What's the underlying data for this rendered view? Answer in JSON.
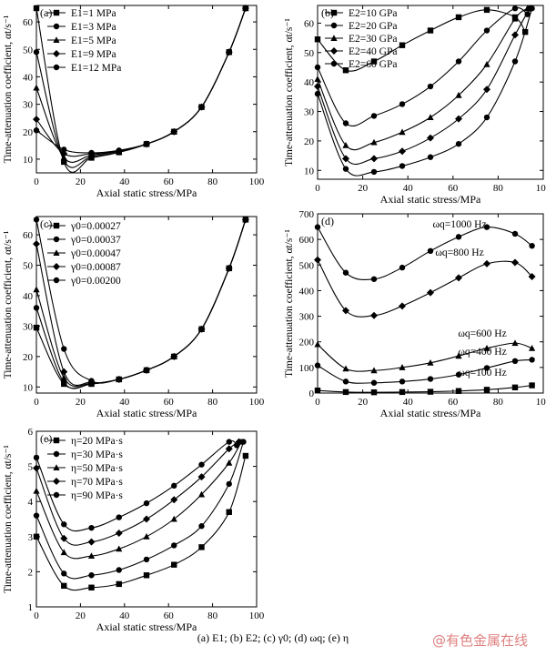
{
  "caption": "(a) E1; (b) E2; (c) γ0; (d) ωq; (e) η",
  "watermark": "@有色金属在线",
  "chart_data": [
    {
      "type": "line",
      "panel_label": "(a)",
      "xlabel": "Axial static stress/MPa",
      "ylabel": "Time-attenuation coefficient, αt/s⁻¹",
      "xlim": [
        0,
        100
      ],
      "ylim": [
        5,
        66
      ],
      "xticks": [
        0,
        20,
        40,
        60,
        80,
        100
      ],
      "yticks": [
        10,
        20,
        30,
        40,
        50,
        60
      ],
      "legend_position": "top-left",
      "series": [
        {
          "name": "E1=1 MPa",
          "marker": "square",
          "x": [
            0,
            12.5,
            25,
            37.5,
            50,
            62.5,
            75,
            87.5,
            95
          ],
          "y": [
            65,
            9,
            10.5,
            12.5,
            15.5,
            20,
            29,
            49,
            65
          ]
        },
        {
          "name": "E1=3 MPa",
          "marker": "circle",
          "x": [
            0,
            12.5,
            25,
            37.5,
            50,
            62.5,
            75,
            87.5,
            95
          ],
          "y": [
            49,
            9.5,
            11,
            12.5,
            15.5,
            20,
            29,
            49,
            65
          ]
        },
        {
          "name": "E1=5 MPa",
          "marker": "triangle",
          "x": [
            0,
            12.5,
            25,
            37.5,
            50,
            62.5,
            75,
            87.5,
            95
          ],
          "y": [
            36,
            10.5,
            11.5,
            12.8,
            15.5,
            20,
            29,
            49,
            65
          ]
        },
        {
          "name": "E1=9 MPa",
          "marker": "diamond",
          "x": [
            0,
            12.5,
            25,
            37.5,
            50,
            62.5,
            75,
            87.5,
            95
          ],
          "y": [
            24.5,
            12,
            12,
            13,
            15.5,
            20,
            29,
            49,
            65
          ]
        },
        {
          "name": "E1=12 MPa",
          "marker": "circle",
          "x": [
            0,
            12.5,
            25,
            37.5,
            50,
            62.5,
            75,
            87.5,
            95
          ],
          "y": [
            20.5,
            13.5,
            12.3,
            13.2,
            15.5,
            20,
            29,
            49,
            65
          ]
        }
      ]
    },
    {
      "type": "line",
      "panel_label": "(b)",
      "xlabel": "Axial static stress/MPa",
      "ylabel": "Time-attenuation coefficient, αt/s⁻¹",
      "xlim": [
        0,
        100
      ],
      "ylim": [
        7,
        66
      ],
      "xticks": [
        0,
        20,
        40,
        60,
        80,
        100
      ],
      "yticks": [
        10,
        20,
        30,
        40,
        50,
        60
      ],
      "legend_position": "top-left",
      "series": [
        {
          "name": "E2=10 GPa",
          "marker": "square",
          "x": [
            0,
            12.5,
            25,
            37.5,
            50,
            62.5,
            75,
            87.5,
            92
          ],
          "y": [
            54.5,
            44,
            47,
            52.5,
            57.5,
            62,
            64.5,
            62,
            57
          ]
        },
        {
          "name": "E2=20 GPa",
          "marker": "circle",
          "x": [
            0,
            12.5,
            25,
            37.5,
            50,
            62.5,
            75,
            87.5,
            93
          ],
          "y": [
            45,
            26,
            28.5,
            32.5,
            38.5,
            47,
            57.5,
            65,
            63
          ]
        },
        {
          "name": "E2=30 GPa",
          "marker": "triangle",
          "x": [
            0,
            12.5,
            25,
            37.5,
            50,
            62.5,
            75,
            87.5,
            93
          ],
          "y": [
            41,
            18.5,
            19.5,
            23,
            28,
            35.5,
            46,
            61.5,
            65
          ]
        },
        {
          "name": "E2=40 GPa",
          "marker": "diamond",
          "x": [
            0,
            12.5,
            25,
            37.5,
            50,
            62.5,
            75,
            87.5,
            94
          ],
          "y": [
            38.5,
            14,
            14,
            16.5,
            21,
            27.5,
            37.5,
            56,
            65
          ]
        },
        {
          "name": "E2=60 GPa",
          "marker": "circle",
          "x": [
            0,
            12.5,
            25,
            37.5,
            50,
            62.5,
            75,
            87.5,
            95
          ],
          "y": [
            36,
            10.5,
            9.5,
            11.5,
            14.5,
            19,
            28,
            47,
            65
          ]
        }
      ]
    },
    {
      "type": "line",
      "panel_label": "(c)",
      "xlabel": "Axial static stress/MPa",
      "ylabel": "Time-attenuation coefficient, αt/s⁻¹",
      "xlim": [
        0,
        100
      ],
      "ylim": [
        8,
        66
      ],
      "xticks": [
        0,
        20,
        40,
        60,
        80,
        100
      ],
      "yticks": [
        10,
        20,
        30,
        40,
        50,
        60
      ],
      "legend_position": "top-left",
      "series": [
        {
          "name": "γ0=0.00027",
          "marker": "square",
          "x": [
            0,
            12.5,
            25,
            37.5,
            50,
            62.5,
            75,
            87.5,
            95
          ],
          "y": [
            29.5,
            11,
            11,
            12.5,
            15.5,
            20,
            29,
            49,
            65
          ]
        },
        {
          "name": "γ0=0.00037",
          "marker": "circle",
          "x": [
            0,
            12.5,
            25,
            37.5,
            50,
            62.5,
            75,
            87.5,
            95
          ],
          "y": [
            36,
            11.5,
            11,
            12.5,
            15.5,
            20,
            29,
            49,
            65
          ]
        },
        {
          "name": "γ0=0.00047",
          "marker": "triangle",
          "x": [
            0,
            12.5,
            25,
            37.5,
            50,
            62.5,
            75,
            87.5,
            95
          ],
          "y": [
            42,
            13,
            11.2,
            12.5,
            15.5,
            20,
            29,
            49,
            65
          ]
        },
        {
          "name": "γ0=0.00087",
          "marker": "diamond",
          "x": [
            0,
            12.5,
            25,
            37.5,
            50,
            62.5,
            75,
            87.5,
            95
          ],
          "y": [
            57,
            15,
            11.5,
            12.5,
            15.5,
            20,
            29,
            49,
            65
          ]
        },
        {
          "name": "γ0=0.00200",
          "marker": "circle",
          "x": [
            0,
            12.5,
            25,
            37.5,
            50,
            62.5,
            75,
            87.5,
            95
          ],
          "y": [
            65,
            22.5,
            12,
            12.5,
            15.5,
            20,
            29,
            49,
            65
          ]
        }
      ]
    },
    {
      "type": "line",
      "panel_label": "(d)",
      "xlabel": "Axial static stress/MPa",
      "ylabel": "Time-attenuation coefficient, αt/s⁻¹",
      "xlim": [
        0,
        100
      ],
      "ylim": [
        0,
        700
      ],
      "xticks": [
        0,
        20,
        40,
        60,
        80,
        100
      ],
      "yticks": [
        0,
        100,
        200,
        300,
        400,
        500,
        600,
        700
      ],
      "legend_position": "inline labels",
      "series": [
        {
          "name": "ωq=1000 Hz",
          "marker": "circle",
          "x": [
            0,
            12.5,
            25,
            37.5,
            50,
            62.5,
            75,
            87.5,
            95
          ],
          "y": [
            648,
            470,
            445,
            490,
            555,
            610,
            648,
            622,
            575
          ]
        },
        {
          "name": "ωq=800 Hz",
          "marker": "diamond",
          "x": [
            0,
            12.5,
            25,
            37.5,
            50,
            62.5,
            75,
            87.5,
            95
          ],
          "y": [
            520,
            322,
            303,
            340,
            392,
            450,
            505,
            510,
            455
          ]
        },
        {
          "name": "ωq=600 Hz",
          "marker": "triangle",
          "x": [
            0,
            12.5,
            25,
            37.5,
            50,
            62.5,
            75,
            87.5,
            95
          ],
          "y": [
            190,
            95,
            88,
            100,
            118,
            145,
            175,
            195,
            175
          ]
        },
        {
          "name": "ωq=400 Hz",
          "marker": "circle",
          "x": [
            0,
            12.5,
            25,
            37.5,
            50,
            62.5,
            75,
            87.5,
            95
          ],
          "y": [
            108,
            45,
            40,
            45,
            55,
            72,
            98,
            125,
            130
          ]
        },
        {
          "name": "ωq=100 Hz",
          "marker": "square",
          "x": [
            0,
            12.5,
            25,
            37.5,
            50,
            62.5,
            75,
            87.5,
            95
          ],
          "y": [
            10,
            4,
            3,
            4,
            5,
            8,
            13,
            22,
            30
          ]
        }
      ]
    },
    {
      "type": "line",
      "panel_label": "(e)",
      "xlabel": "Axial static stress/MPa",
      "ylabel": "Time-attenuation coefficient, αt/s⁻¹",
      "xlim": [
        0,
        100
      ],
      "ylim": [
        1,
        6
      ],
      "xticks": [
        0,
        20,
        40,
        60,
        80,
        100
      ],
      "yticks": [
        1,
        2,
        3,
        4,
        5,
        6
      ],
      "legend_position": "top-left",
      "series": [
        {
          "name": "η=20 MPa·s",
          "marker": "square",
          "x": [
            0,
            12.5,
            25,
            37.5,
            50,
            62.5,
            75,
            87.5,
            95
          ],
          "y": [
            3.0,
            1.6,
            1.55,
            1.65,
            1.9,
            2.2,
            2.7,
            3.7,
            5.3
          ]
        },
        {
          "name": "η=30 MPa·s",
          "marker": "circle",
          "x": [
            0,
            12.5,
            25,
            37.5,
            50,
            62.5,
            75,
            87.5,
            94
          ],
          "y": [
            3.6,
            1.95,
            1.9,
            2.05,
            2.35,
            2.75,
            3.3,
            4.5,
            5.7
          ]
        },
        {
          "name": "η=50 MPa·s",
          "marker": "triangle",
          "x": [
            0,
            12.5,
            25,
            37.5,
            50,
            62.5,
            75,
            87.5,
            93
          ],
          "y": [
            4.3,
            2.55,
            2.45,
            2.65,
            3.0,
            3.5,
            4.2,
            5.1,
            5.7
          ]
        },
        {
          "name": "η=70 MPa·s",
          "marker": "diamond",
          "x": [
            0,
            12.5,
            25,
            37.5,
            50,
            62.5,
            75,
            87.5,
            92
          ],
          "y": [
            4.95,
            2.95,
            2.85,
            3.1,
            3.5,
            4.05,
            4.7,
            5.5,
            5.7
          ]
        },
        {
          "name": "η=90 MPa·s",
          "marker": "circle",
          "x": [
            0,
            12.5,
            25,
            37.5,
            50,
            62.5,
            75,
            87.5,
            91
          ],
          "y": [
            5.25,
            3.35,
            3.25,
            3.55,
            3.95,
            4.45,
            5.05,
            5.7,
            5.6
          ]
        }
      ]
    }
  ]
}
